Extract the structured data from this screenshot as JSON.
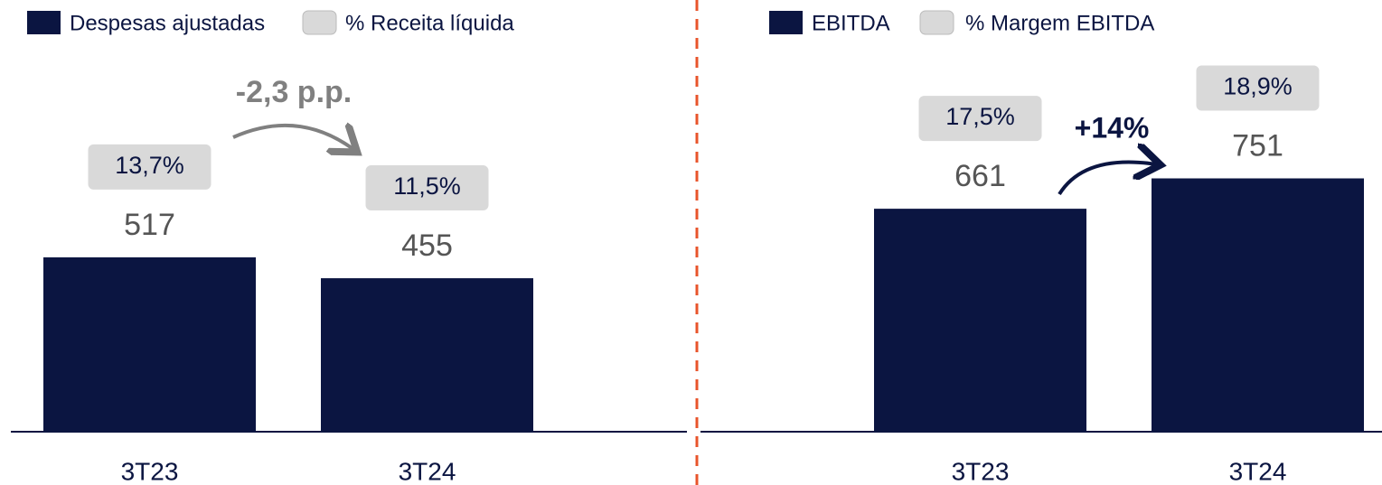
{
  "chart_data": [
    {
      "type": "bar",
      "categories": [
        "3T23",
        "3T24"
      ],
      "series": [
        {
          "name": "Despesas ajustadas",
          "color": "#0b1541",
          "values": [
            517,
            455
          ]
        },
        {
          "name": "% Receita líquida",
          "color": "#d9d9d9",
          "values": [
            13.7,
            11.5
          ],
          "value_labels": [
            "13,7%",
            "11,5%"
          ]
        }
      ],
      "annotation": "-2,3 p.p.",
      "ylim": [
        0,
        1000
      ]
    },
    {
      "type": "bar",
      "categories": [
        "3T23",
        "3T24"
      ],
      "series": [
        {
          "name": "EBITDA",
          "color": "#0b1541",
          "values": [
            661,
            751
          ]
        },
        {
          "name": "% Margem EBITDA",
          "color": "#d9d9d9",
          "values": [
            17.5,
            18.9
          ],
          "value_labels": [
            "17,5%",
            "18,9%"
          ]
        }
      ],
      "annotation": "+14%",
      "ylim": [
        0,
        1000
      ]
    }
  ]
}
